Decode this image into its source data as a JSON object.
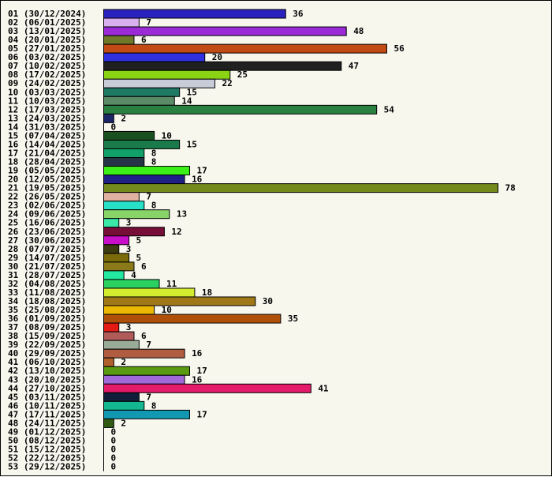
{
  "chart_data": {
    "type": "bar",
    "orientation": "horizontal",
    "title": "",
    "xlabel": "",
    "ylabel": "",
    "xlim": [
      0,
      78
    ],
    "grid": false,
    "legend": "none",
    "categories": [
      "01 (30/12/2024)",
      "02 (06/01/2025)",
      "03 (13/01/2025)",
      "04 (20/01/2025)",
      "05 (27/01/2025)",
      "06 (03/02/2025)",
      "07 (10/02/2025)",
      "08 (17/02/2025)",
      "09 (24/02/2025)",
      "10 (03/03/2025)",
      "11 (10/03/2025)",
      "12 (17/03/2025)",
      "13 (24/03/2025)",
      "14 (31/03/2025)",
      "15 (07/04/2025)",
      "16 (14/04/2025)",
      "17 (21/04/2025)",
      "18 (28/04/2025)",
      "19 (05/05/2025)",
      "20 (12/05/2025)",
      "21 (19/05/2025)",
      "22 (26/05/2025)",
      "23 (02/06/2025)",
      "24 (09/06/2025)",
      "25 (16/06/2025)",
      "26 (23/06/2025)",
      "27 (30/06/2025)",
      "28 (07/07/2025)",
      "29 (14/07/2025)",
      "30 (21/07/2025)",
      "31 (28/07/2025)",
      "32 (04/08/2025)",
      "33 (11/08/2025)",
      "34 (18/08/2025)",
      "35 (25/08/2025)",
      "36 (01/09/2025)",
      "37 (08/09/2025)",
      "38 (15/09/2025)",
      "39 (22/09/2025)",
      "40 (29/09/2025)",
      "41 (06/10/2025)",
      "42 (13/10/2025)",
      "43 (20/10/2025)",
      "44 (27/10/2025)",
      "45 (03/11/2025)",
      "46 (10/11/2025)",
      "47 (17/11/2025)",
      "48 (24/11/2025)",
      "49 (01/12/2025)",
      "50 (08/12/2025)",
      "51 (15/12/2025)",
      "52 (22/12/2025)",
      "53 (29/12/2025)"
    ],
    "values": [
      36,
      7,
      48,
      6,
      56,
      20,
      47,
      25,
      22,
      15,
      14,
      54,
      2,
      0,
      10,
      15,
      8,
      8,
      17,
      16,
      78,
      7,
      8,
      13,
      3,
      12,
      5,
      3,
      5,
      6,
      4,
      11,
      18,
      30,
      10,
      35,
      3,
      6,
      7,
      16,
      2,
      17,
      16,
      41,
      7,
      8,
      17,
      2,
      0,
      0,
      0,
      0,
      0
    ],
    "colors": [
      "#2a22bf",
      "#d8b0ee",
      "#9a2bd6",
      "#70782a",
      "#c24a14",
      "#3030e0",
      "#202020",
      "#8ad414",
      "#c8ccd8",
      "#1e7a62",
      "#5a8a66",
      "#2a8040",
      "#1c2666",
      "#2a6aaa",
      "#1a5020",
      "#1a7a4a",
      "#12a06a",
      "#263448",
      "#3af018",
      "#1e2088",
      "#748a1c",
      "#e0b0a0",
      "#28e0c8",
      "#88d468",
      "#3ae8a8",
      "#760e38",
      "#c80ec8",
      "#3c3a10",
      "#7a6a0a",
      "#8a7a1a",
      "#22e8a0",
      "#2ad060",
      "#d4ec30",
      "#a07818",
      "#ecb804",
      "#b05008",
      "#e41a14",
      "#b05a5a",
      "#9aac98",
      "#b05c40",
      "#b0602a",
      "#5a9a10",
      "#a068d8",
      "#e41a6a",
      "#101e3a",
      "#14b890",
      "#1298b0",
      "#305a14",
      "#2a50c0",
      "#2a50c0",
      "#2a50c0",
      "#2a50c0",
      "#2a50c0"
    ]
  }
}
